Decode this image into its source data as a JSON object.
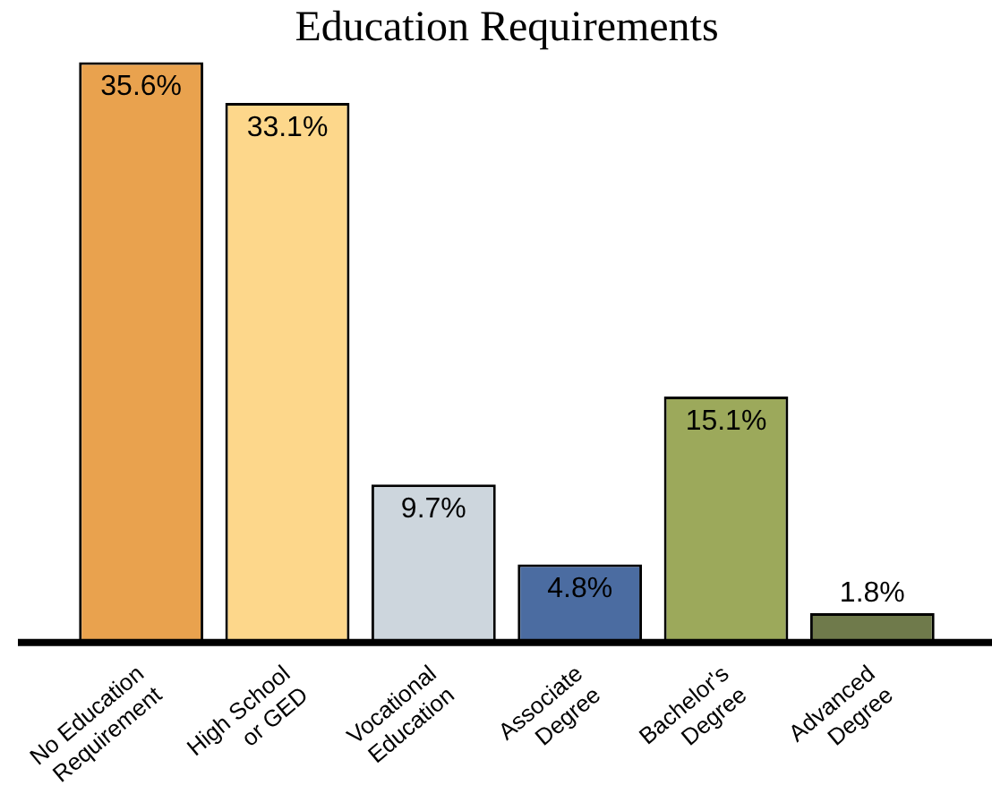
{
  "chart_data": {
    "type": "bar",
    "title": "Education Requirements",
    "categories": [
      "No Education\nRequirement",
      "High School\nor GED",
      "Vocational\nEducation",
      "Associate\nDegree",
      "Bachelor's\nDegree",
      "Advanced\nDegree"
    ],
    "values": [
      35.6,
      33.1,
      9.7,
      4.8,
      15.1,
      1.8
    ],
    "value_labels": [
      "35.6%",
      "33.1%",
      "9.7%",
      "4.8%",
      "15.1%",
      "1.8%"
    ],
    "colors": [
      "#e9a24e",
      "#fdd78b",
      "#cdd6dd",
      "#4b6ca1",
      "#9ca95b",
      "#6f7a4b"
    ],
    "grid": false,
    "legend": false
  }
}
